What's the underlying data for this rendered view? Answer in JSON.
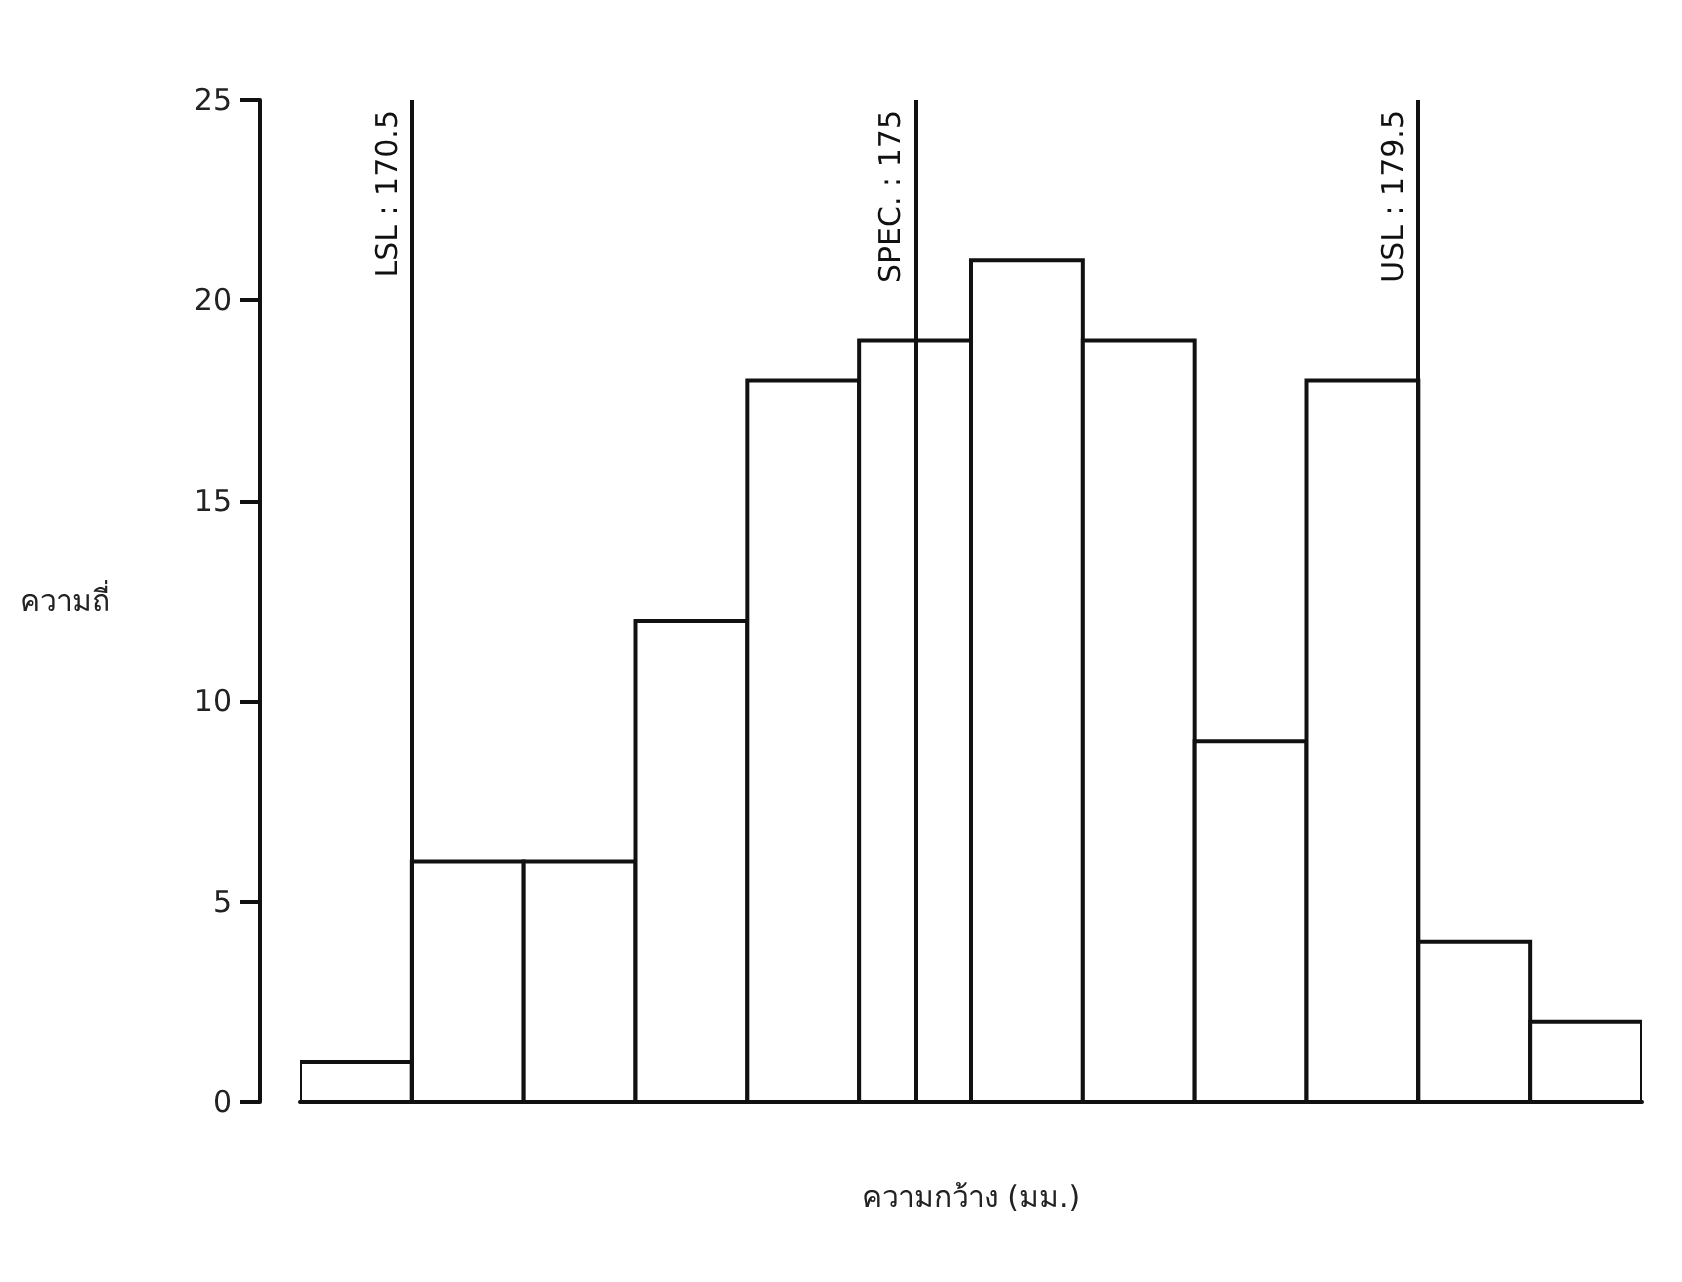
{
  "chart_data": {
    "type": "histogram",
    "xlabel": "ความกว้าง (มม.)",
    "ylabel": "ความถี่",
    "bins": [
      169.5,
      170.5,
      171.5,
      172.5,
      173.5,
      174.5,
      175.5,
      176.5,
      177.5,
      178.5,
      179.5,
      180.5,
      181.5
    ],
    "values": [
      1,
      6,
      6,
      12,
      18,
      19,
      21,
      19,
      9,
      18,
      4,
      2
    ],
    "color": "#ffffff",
    "xlim": [
      169.5,
      181.5
    ],
    "ylim": [
      0,
      25
    ],
    "yticks": [
      0,
      5,
      10,
      15,
      20,
      25
    ],
    "tick_labels": "y",
    "grid": false,
    "ref_lines": [
      {
        "axis": "x",
        "value": 170.5,
        "label": "LSL : 170.5"
      },
      {
        "axis": "x",
        "value": 175,
        "label": "SPEC. : 175"
      },
      {
        "axis": "x",
        "value": 179.5,
        "label": "USL : 179.5"
      }
    ]
  }
}
